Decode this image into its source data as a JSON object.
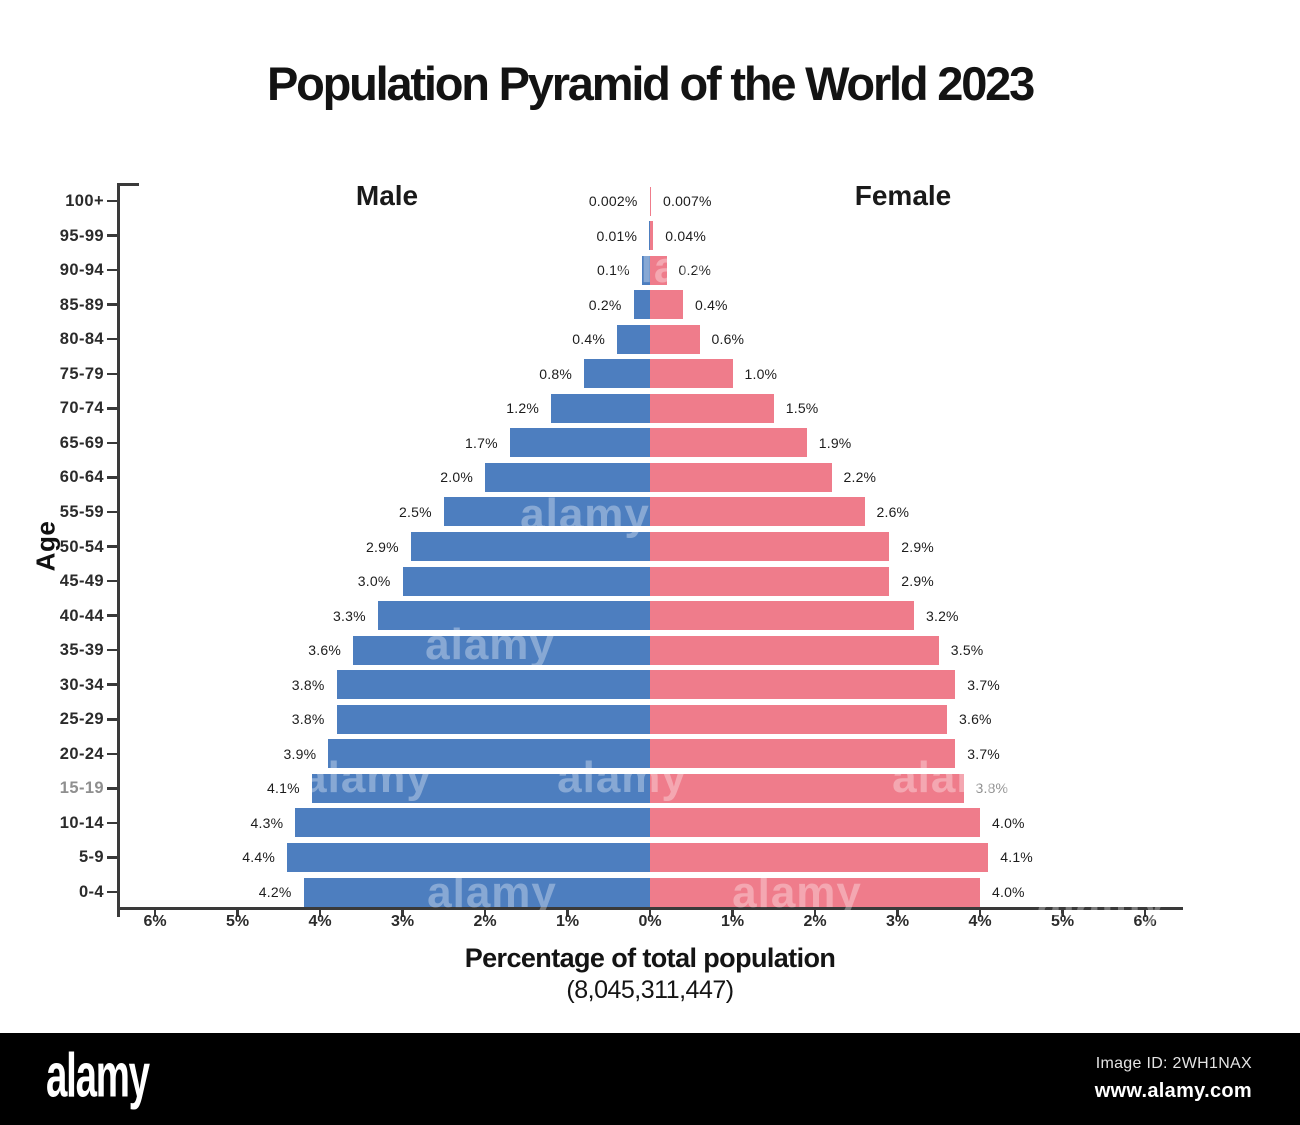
{
  "chart_data": {
    "type": "bar",
    "variant": "population-pyramid",
    "title": "Population Pyramid of the World 2023",
    "left_header": "Male",
    "right_header": "Female",
    "ylabel": "Age",
    "xlabel": "Percentage of total population",
    "xlabel_note": "(8,045,311,447)",
    "unit": "percent of total population",
    "categories": [
      "100+",
      "95-99",
      "90-94",
      "85-89",
      "80-84",
      "75-79",
      "70-74",
      "65-69",
      "60-64",
      "55-59",
      "50-54",
      "45-49",
      "40-44",
      "35-39",
      "30-34",
      "25-29",
      "20-24",
      "15-19",
      "10-14",
      "5-9",
      "0-4"
    ],
    "series": [
      {
        "name": "Male",
        "side": "left",
        "color": "#4d7ebf",
        "values": [
          0.002,
          0.01,
          0.1,
          0.2,
          0.4,
          0.8,
          1.2,
          1.7,
          2.0,
          2.5,
          2.9,
          3.0,
          3.3,
          3.6,
          3.8,
          3.8,
          3.9,
          4.1,
          4.3,
          4.4,
          4.2
        ],
        "labels": [
          "0.002%",
          "0.01%",
          "0.1%",
          "0.2%",
          "0.4%",
          "0.8%",
          "1.2%",
          "1.7%",
          "2.0%",
          "2.5%",
          "2.9%",
          "3.0%",
          "3.3%",
          "3.6%",
          "3.8%",
          "3.8%",
          "3.9%",
          "4.1%",
          "4.3%",
          "4.4%",
          "4.2%"
        ]
      },
      {
        "name": "Female",
        "side": "right",
        "color": "#ef7c8b",
        "values": [
          0.007,
          0.04,
          0.2,
          0.4,
          0.6,
          1.0,
          1.5,
          1.9,
          2.2,
          2.6,
          2.9,
          2.9,
          3.2,
          3.5,
          3.7,
          3.6,
          3.7,
          3.8,
          4.0,
          4.1,
          4.0
        ],
        "labels": [
          "0.007%",
          "0.04%",
          "0.2%",
          "0.4%",
          "0.6%",
          "1.0%",
          "1.5%",
          "1.9%",
          "2.2%",
          "2.6%",
          "2.9%",
          "2.9%",
          "3.2%",
          "3.5%",
          "3.7%",
          "3.6%",
          "3.7%",
          "3.8%",
          "4.0%",
          "4.1%",
          "4.0%"
        ]
      }
    ],
    "x_axis": {
      "min": -6.5,
      "max": 6.5,
      "tick_values": [
        -6,
        -5,
        -4,
        -3,
        -2,
        -1,
        0,
        1,
        2,
        3,
        4,
        5,
        6
      ],
      "tick_labels": [
        "6%",
        "5%",
        "4%",
        "3%",
        "2%",
        "1%",
        "0%",
        "1%",
        "2%",
        "3%",
        "4%",
        "5%",
        "6%"
      ]
    },
    "grid": false,
    "legend_position": "top-inside-headers"
  },
  "watermark": {
    "tile_text": "alamy"
  },
  "footer": {
    "logo": "alamy",
    "image_id_label": "Image ID: 2WH1NAX",
    "url": "www.alamy.com"
  }
}
